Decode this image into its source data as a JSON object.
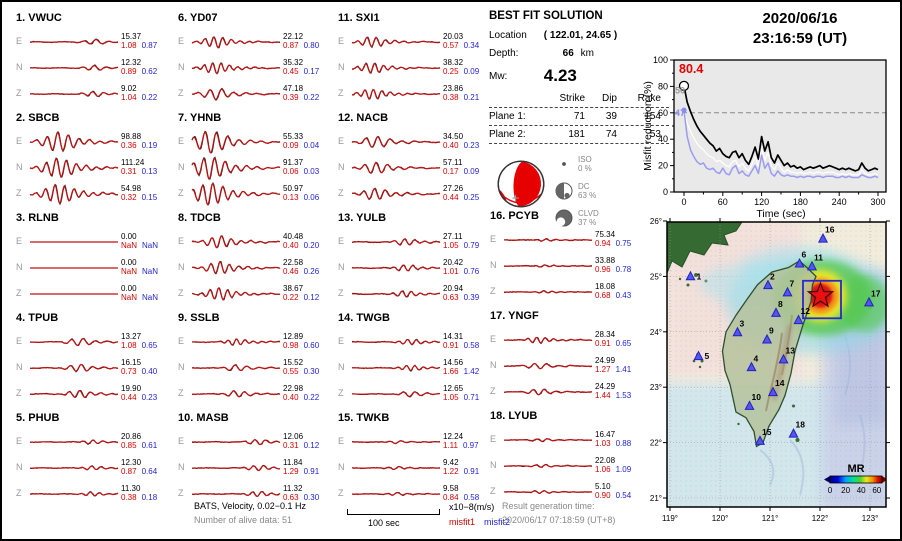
{
  "header": {
    "date": "2020/06/16",
    "time": "23:16:59  (UT)"
  },
  "best_fit": {
    "title": "BEST FIT SOLUTION",
    "location_label": "Location",
    "location_value": "( 122.01,  24.65 )",
    "depth_label": "Depth:",
    "depth_value": "66",
    "depth_unit": "km",
    "mw_label": "Mw:",
    "mw_value": "4.23",
    "table": {
      "col_headers": [
        "Strike",
        "Dip",
        "Rake"
      ],
      "rows": [
        {
          "label": "Plane 1:",
          "strike": "71",
          "dip": "39",
          "rake": "154"
        },
        {
          "label": "Plane 2:",
          "strike": "181",
          "dip": "74",
          "rake": "53"
        }
      ]
    },
    "decomposition": [
      {
        "name": "ISO",
        "pct": "0 %"
      },
      {
        "name": "DC",
        "pct": "63 %"
      },
      {
        "name": "CLVD",
        "pct": "37 %"
      }
    ]
  },
  "stations": [
    {
      "num": "1.",
      "name": "VWUC",
      "channels": [
        {
          "c": "E",
          "peak": "15.37",
          "m1": "1.08",
          "m2": "0.87"
        },
        {
          "c": "N",
          "peak": "12.32",
          "m1": "0.89",
          "m2": "0.62"
        },
        {
          "c": "Z",
          "peak": "9.02",
          "m1": "1.04",
          "m2": "0.22"
        }
      ]
    },
    {
      "num": "2.",
      "name": "SBCB",
      "channels": [
        {
          "c": "E",
          "peak": "98.88",
          "m1": "0.36",
          "m2": "0.19"
        },
        {
          "c": "N",
          "peak": "111.24",
          "m1": "0.31",
          "m2": "0.13"
        },
        {
          "c": "Z",
          "peak": "54.98",
          "m1": "0.32",
          "m2": "0.15"
        }
      ]
    },
    {
      "num": "3.",
      "name": "RLNB",
      "channels": [
        {
          "c": "E",
          "peak": "0.00",
          "m1": "NaN",
          "m2": "NaN"
        },
        {
          "c": "N",
          "peak": "0.00",
          "m1": "NaN",
          "m2": "NaN"
        },
        {
          "c": "Z",
          "peak": "0.00",
          "m1": "NaN",
          "m2": "NaN"
        }
      ]
    },
    {
      "num": "4.",
      "name": "TPUB",
      "channels": [
        {
          "c": "E",
          "peak": "13.27",
          "m1": "1.08",
          "m2": "0.65"
        },
        {
          "c": "N",
          "peak": "16.15",
          "m1": "0.73",
          "m2": "0.40"
        },
        {
          "c": "Z",
          "peak": "19.90",
          "m1": "0.44",
          "m2": "0.23"
        }
      ]
    },
    {
      "num": "5.",
      "name": "PHUB",
      "channels": [
        {
          "c": "E",
          "peak": "20.86",
          "m1": "0.85",
          "m2": "0.61"
        },
        {
          "c": "N",
          "peak": "12.30",
          "m1": "0.87",
          "m2": "0.64"
        },
        {
          "c": "Z",
          "peak": "11.30",
          "m1": "0.38",
          "m2": "0.18"
        }
      ]
    },
    {
      "num": "6.",
      "name": "YD07",
      "channels": [
        {
          "c": "E",
          "peak": "22.12",
          "m1": "0.87",
          "m2": "0.80"
        },
        {
          "c": "N",
          "peak": "35.32",
          "m1": "0.45",
          "m2": "0.17"
        },
        {
          "c": "Z",
          "peak": "47.18",
          "m1": "0.39",
          "m2": "0.22"
        }
      ]
    },
    {
      "num": "7.",
      "name": "YHNB",
      "channels": [
        {
          "c": "E",
          "peak": "55.33",
          "m1": "0.09",
          "m2": "0.04"
        },
        {
          "c": "N",
          "peak": "91.37",
          "m1": "0.06",
          "m2": "0.03"
        },
        {
          "c": "Z",
          "peak": "50.97",
          "m1": "0.13",
          "m2": "0.06"
        }
      ]
    },
    {
      "num": "8.",
      "name": "TDCB",
      "channels": [
        {
          "c": "E",
          "peak": "40.48",
          "m1": "0.40",
          "m2": "0.20"
        },
        {
          "c": "N",
          "peak": "22.58",
          "m1": "0.46",
          "m2": "0.26"
        },
        {
          "c": "Z",
          "peak": "38.67",
          "m1": "0.22",
          "m2": "0.12"
        }
      ]
    },
    {
      "num": "9.",
      "name": "SSLB",
      "channels": [
        {
          "c": "E",
          "peak": "12.89",
          "m1": "0.98",
          "m2": "0.60"
        },
        {
          "c": "N",
          "peak": "15.52",
          "m1": "0.55",
          "m2": "0.30"
        },
        {
          "c": "Z",
          "peak": "22.98",
          "m1": "0.40",
          "m2": "0.22"
        }
      ]
    },
    {
      "num": "10.",
      "name": "MASB",
      "channels": [
        {
          "c": "E",
          "peak": "12.06",
          "m1": "0.31",
          "m2": "0.12"
        },
        {
          "c": "N",
          "peak": "11.84",
          "m1": "1.29",
          "m2": "0.91"
        },
        {
          "c": "Z",
          "peak": "11.32",
          "m1": "0.63",
          "m2": "0.30"
        }
      ]
    },
    {
      "num": "11.",
      "name": "SXI1",
      "channels": [
        {
          "c": "E",
          "peak": "20.03",
          "m1": "0.57",
          "m2": "0.34"
        },
        {
          "c": "N",
          "peak": "38.32",
          "m1": "0.25",
          "m2": "0.09"
        },
        {
          "c": "Z",
          "peak": "23.86",
          "m1": "0.38",
          "m2": "0.21"
        }
      ]
    },
    {
      "num": "12.",
      "name": "NACB",
      "channels": [
        {
          "c": "E",
          "peak": "34.50",
          "m1": "0.40",
          "m2": "0.23"
        },
        {
          "c": "N",
          "peak": "57.11",
          "m1": "0.17",
          "m2": "0.09"
        },
        {
          "c": "Z",
          "peak": "27.26",
          "m1": "0.44",
          "m2": "0.25"
        }
      ]
    },
    {
      "num": "13.",
      "name": "YULB",
      "channels": [
        {
          "c": "E",
          "peak": "27.11",
          "m1": "1.05",
          "m2": "0.79"
        },
        {
          "c": "N",
          "peak": "20.42",
          "m1": "1.01",
          "m2": "0.76"
        },
        {
          "c": "Z",
          "peak": "20.94",
          "m1": "0.63",
          "m2": "0.39"
        }
      ]
    },
    {
      "num": "14.",
      "name": "TWGB",
      "channels": [
        {
          "c": "E",
          "peak": "14.31",
          "m1": "0.91",
          "m2": "0.58"
        },
        {
          "c": "N",
          "peak": "14.56",
          "m1": "1.66",
          "m2": "1.42"
        },
        {
          "c": "Z",
          "peak": "12.65",
          "m1": "1.05",
          "m2": "0.71"
        }
      ]
    },
    {
      "num": "15.",
      "name": "TWKB",
      "channels": [
        {
          "c": "E",
          "peak": "12.24",
          "m1": "1.11",
          "m2": "0.97"
        },
        {
          "c": "N",
          "peak": "9.42",
          "m1": "1.22",
          "m2": "0.91"
        },
        {
          "c": "Z",
          "peak": "9.58",
          "m1": "0.84",
          "m2": "0.58"
        }
      ]
    },
    {
      "num": "16.",
      "name": "PCYB",
      "channels": [
        {
          "c": "E",
          "peak": "75.34",
          "m1": "0.94",
          "m2": "0.75"
        },
        {
          "c": "N",
          "peak": "33.88",
          "m1": "0.96",
          "m2": "0.78"
        },
        {
          "c": "Z",
          "peak": "18.08",
          "m1": "0.68",
          "m2": "0.43"
        }
      ]
    },
    {
      "num": "17.",
      "name": "YNGF",
      "channels": [
        {
          "c": "E",
          "peak": "28.34",
          "m1": "0.91",
          "m2": "0.65"
        },
        {
          "c": "N",
          "peak": "24.99",
          "m1": "1.27",
          "m2": "1.41"
        },
        {
          "c": "Z",
          "peak": "24.29",
          "m1": "1.44",
          "m2": "1.53"
        }
      ]
    },
    {
      "num": "18.",
      "name": "LYUB",
      "channels": [
        {
          "c": "E",
          "peak": "16.47",
          "m1": "1.03",
          "m2": "0.88"
        },
        {
          "c": "N",
          "peak": "22.08",
          "m1": "1.06",
          "m2": "1.09"
        },
        {
          "c": "Z",
          "peak": "5.10",
          "m1": "0.90",
          "m2": "0.54"
        }
      ]
    }
  ],
  "chart_data": {
    "type": "line",
    "title": "Misfit reduction vs time",
    "xlabel": "Time (sec)",
    "ylabel": "Misfit reduction (%)",
    "xlim": [
      0,
      300
    ],
    "ylim": [
      0,
      100
    ],
    "x_ticks": [
      0,
      60,
      120,
      180,
      240,
      300
    ],
    "y_ticks": [
      0,
      20,
      40,
      60,
      80,
      100
    ],
    "dashed_line_y": 60,
    "x_step": 5,
    "annotations": [
      {
        "text": "80.4",
        "color": "#e00000",
        "y": 93
      },
      {
        "text": "50",
        "color": "#999999",
        "y": 77
      },
      {
        "text": "47",
        "color": "#8f8fe8",
        "y": 60
      }
    ],
    "series": [
      {
        "name": "misfit-black",
        "color": "#000000",
        "values": [
          80.4,
          68,
          61,
          55,
          50,
          46,
          43,
          40,
          37,
          35,
          31,
          33,
          29,
          27,
          26,
          30,
          31,
          26,
          29,
          24,
          21,
          27,
          34,
          25,
          42,
          31,
          38,
          26,
          22,
          28,
          24,
          20,
          22,
          19,
          20,
          18,
          19,
          17,
          18,
          19,
          18,
          19,
          20,
          18,
          19,
          20,
          19,
          18,
          17,
          18,
          17,
          18,
          17,
          16,
          17,
          22,
          18,
          16,
          17,
          18,
          17
        ]
      },
      {
        "name": "misfit-white",
        "color": "#ffffff",
        "values": [
          62,
          52,
          46,
          41,
          37,
          34,
          32,
          29,
          27,
          26,
          23,
          24,
          22,
          20,
          19,
          23,
          24,
          19,
          22,
          18,
          16,
          21,
          27,
          19,
          33,
          24,
          30,
          20,
          17,
          22,
          18,
          15,
          17,
          15,
          15,
          14,
          15,
          14,
          14,
          15,
          14,
          15,
          15,
          14,
          15,
          15,
          15,
          14,
          13,
          14,
          13,
          14,
          13,
          13,
          13,
          17,
          14,
          13,
          13,
          14,
          13
        ]
      },
      {
        "name": "misfit-blue",
        "color": "#9b9bf0",
        "values": [
          62,
          42,
          32,
          27,
          23,
          21,
          22,
          18,
          17,
          18,
          15,
          14,
          18,
          14,
          13,
          18,
          20,
          14,
          16,
          13,
          12,
          16,
          20,
          14,
          28,
          18,
          22,
          14,
          12,
          16,
          13,
          12,
          13,
          12,
          12,
          11,
          12,
          11,
          12,
          12,
          11,
          12,
          12,
          11,
          12,
          12,
          12,
          11,
          11,
          12,
          11,
          12,
          11,
          11,
          11,
          13,
          12,
          11,
          11,
          12,
          11
        ]
      }
    ]
  },
  "map": {
    "lat_ticks": [
      26,
      25,
      24,
      23,
      22,
      21
    ],
    "lon_ticks": [
      119,
      120,
      121,
      122,
      123
    ],
    "deg_suffix": "°",
    "epicenter": {
      "lon": 122.01,
      "lat": 24.65
    },
    "stations": [
      {
        "n": "1",
        "lon": 119.41,
        "lat": 25.0
      },
      {
        "n": "2",
        "lon": 120.96,
        "lat": 24.84
      },
      {
        "n": "3",
        "lon": 120.35,
        "lat": 23.99
      },
      {
        "n": "4",
        "lon": 120.63,
        "lat": 23.36
      },
      {
        "n": "5",
        "lon": 119.57,
        "lat": 23.56
      },
      {
        "n": "6",
        "lon": 121.59,
        "lat": 25.23
      },
      {
        "n": "7",
        "lon": 121.35,
        "lat": 24.71
      },
      {
        "n": "8",
        "lon": 121.12,
        "lat": 24.34
      },
      {
        "n": "9",
        "lon": 120.94,
        "lat": 23.86
      },
      {
        "n": "10",
        "lon": 120.59,
        "lat": 22.66
      },
      {
        "n": "11",
        "lon": 121.84,
        "lat": 25.18
      },
      {
        "n": "12",
        "lon": 121.57,
        "lat": 24.21
      },
      {
        "n": "13",
        "lon": 121.27,
        "lat": 23.5
      },
      {
        "n": "14",
        "lon": 121.06,
        "lat": 22.91
      },
      {
        "n": "15",
        "lon": 120.8,
        "lat": 22.03
      },
      {
        "n": "16",
        "lon": 122.06,
        "lat": 25.68
      },
      {
        "n": "17",
        "lon": 122.98,
        "lat": 24.53
      },
      {
        "n": "18",
        "lon": 121.47,
        "lat": 22.16
      }
    ],
    "colorbar": {
      "title": "MR",
      "ticks": [
        "0",
        "20",
        "40",
        "60"
      ]
    }
  },
  "footer": {
    "line1": "BATS, Velocity, 0.02−0.1 Hz",
    "line2": "Number of alive data: 51",
    "scale_label": "100 sec",
    "unit_label": "x10−8(m/s)",
    "misfit1_label": "misfit1",
    "misfit2_label": "misfit2",
    "result_label": "Result generation time:",
    "result_time": "2020/06/17 07:18:59 (UT+8)"
  },
  "colors": {
    "misfit1": "#d40000",
    "misfit2": "#2323d2",
    "best": "#e00000",
    "chart_blue": "#9b9bf0"
  }
}
